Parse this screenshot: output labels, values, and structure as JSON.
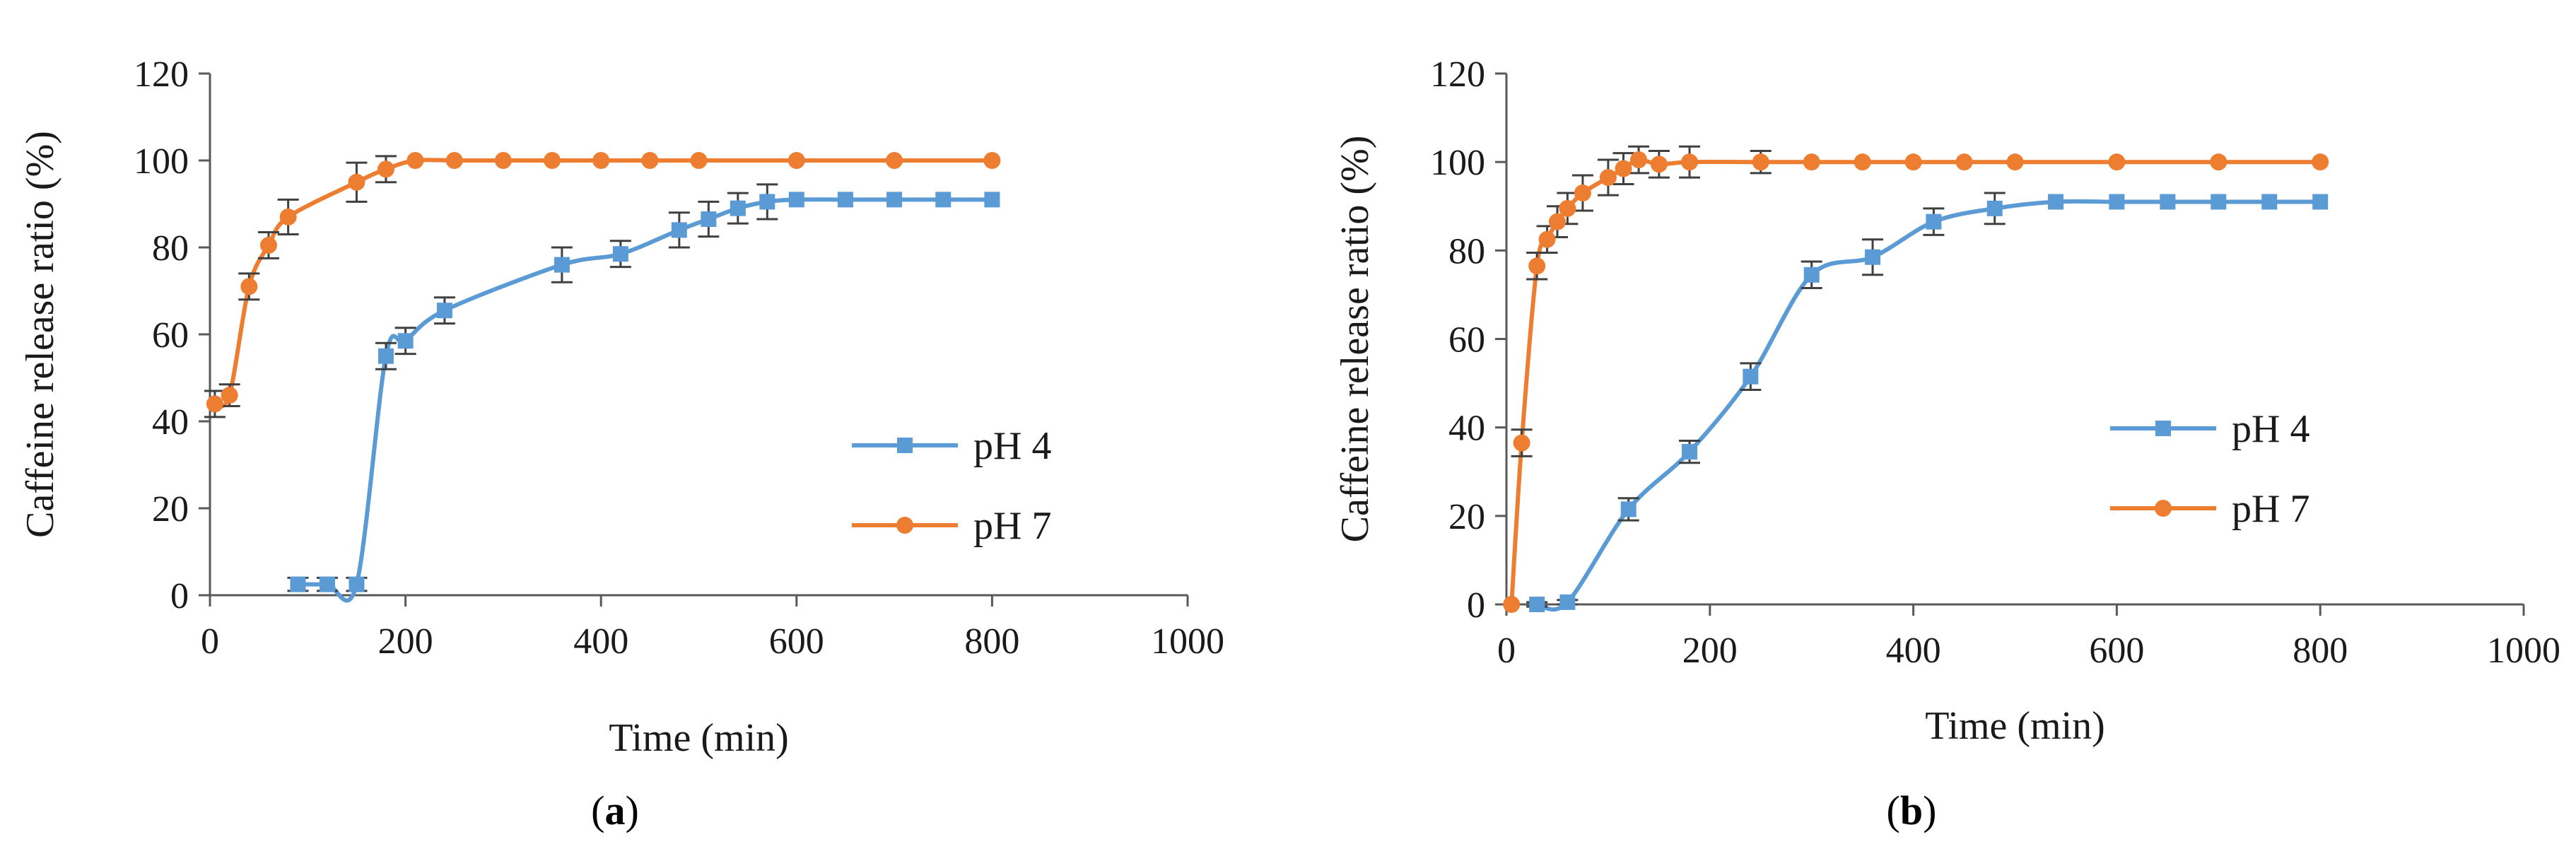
{
  "figure": {
    "captions": [
      {
        "open": "(",
        "letter": "a",
        "close": ")"
      },
      {
        "open": "(",
        "letter": "b",
        "close": ")"
      }
    ]
  },
  "chart_data": [
    {
      "type": "line",
      "xlabel": "Time (min)",
      "ylabel": "Caffeine release ratio (%)",
      "xlim": [
        0,
        1000
      ],
      "ylim": [
        0,
        120
      ],
      "xticks": [
        0,
        200,
        400,
        600,
        800,
        1000
      ],
      "yticks": [
        0,
        20,
        40,
        60,
        80,
        100,
        120
      ],
      "grid": false,
      "legend_position": "center-right",
      "series": [
        {
          "name": "pH 4",
          "color": "#5b9bd5",
          "marker": "square",
          "x": [
            90,
            120,
            150,
            180,
            200,
            240,
            360,
            420,
            480,
            510,
            540,
            570,
            600,
            650,
            700,
            750,
            800
          ],
          "y": [
            2.5,
            2.5,
            2.5,
            55,
            58.5,
            65.5,
            76,
            78.5,
            84,
            86.5,
            89,
            90.5,
            91,
            91,
            91,
            91,
            91
          ],
          "error": [
            1.5,
            1.5,
            1.5,
            3,
            3,
            3,
            4,
            3,
            4,
            4,
            3.5,
            4,
            0,
            0,
            0,
            0,
            0
          ]
        },
        {
          "name": "pH 7",
          "color": "#ed7d31",
          "marker": "circle",
          "x": [
            5,
            20,
            40,
            60,
            80,
            150,
            180,
            210,
            250,
            300,
            350,
            400,
            450,
            500,
            600,
            700,
            800
          ],
          "y": [
            44,
            46,
            71,
            80.5,
            87,
            95,
            98,
            100,
            100,
            100,
            100,
            100,
            100,
            100,
            100,
            100,
            100
          ],
          "error": [
            3,
            2.5,
            3,
            3,
            4,
            4.5,
            3,
            0,
            0,
            0,
            0,
            0,
            0,
            0,
            0,
            0,
            0
          ]
        }
      ]
    },
    {
      "type": "line",
      "xlabel": "Time (min)",
      "ylabel": "Caffeine release ratio (%)",
      "xlim": [
        0,
        1000
      ],
      "ylim": [
        0,
        120
      ],
      "xticks": [
        0,
        200,
        400,
        600,
        800,
        1000
      ],
      "yticks": [
        0,
        20,
        40,
        60,
        80,
        100,
        120
      ],
      "grid": false,
      "legend_position": "center-right",
      "series": [
        {
          "name": "pH 4",
          "color": "#5b9bd5",
          "marker": "square",
          "x": [
            30,
            60,
            120,
            180,
            240,
            300,
            360,
            420,
            480,
            540,
            600,
            650,
            700,
            750,
            800
          ],
          "y": [
            0,
            0.5,
            21.5,
            34.5,
            51.5,
            74.5,
            78.5,
            86.5,
            89.5,
            91,
            91,
            91,
            91,
            91,
            91
          ],
          "error": [
            0.5,
            0.5,
            2.5,
            2.5,
            3,
            3,
            4,
            3,
            3.5,
            0,
            0,
            0,
            0,
            0,
            0
          ]
        },
        {
          "name": "pH 7",
          "color": "#ed7d31",
          "marker": "circle",
          "x": [
            5,
            15,
            30,
            40,
            50,
            60,
            75,
            100,
            115,
            130,
            150,
            180,
            250,
            300,
            350,
            400,
            450,
            500,
            600,
            700,
            800
          ],
          "y": [
            0,
            36.5,
            76.5,
            82.5,
            86.5,
            89.5,
            93,
            96.5,
            98.5,
            100.5,
            99.5,
            100,
            100,
            100,
            100,
            100,
            100,
            100,
            100,
            100,
            100
          ],
          "error": [
            0,
            3,
            3,
            3,
            3.5,
            3.5,
            4,
            4,
            3.5,
            3,
            3,
            3.5,
            2.5,
            0,
            0,
            0,
            0,
            0,
            0,
            0,
            0
          ]
        }
      ]
    }
  ]
}
